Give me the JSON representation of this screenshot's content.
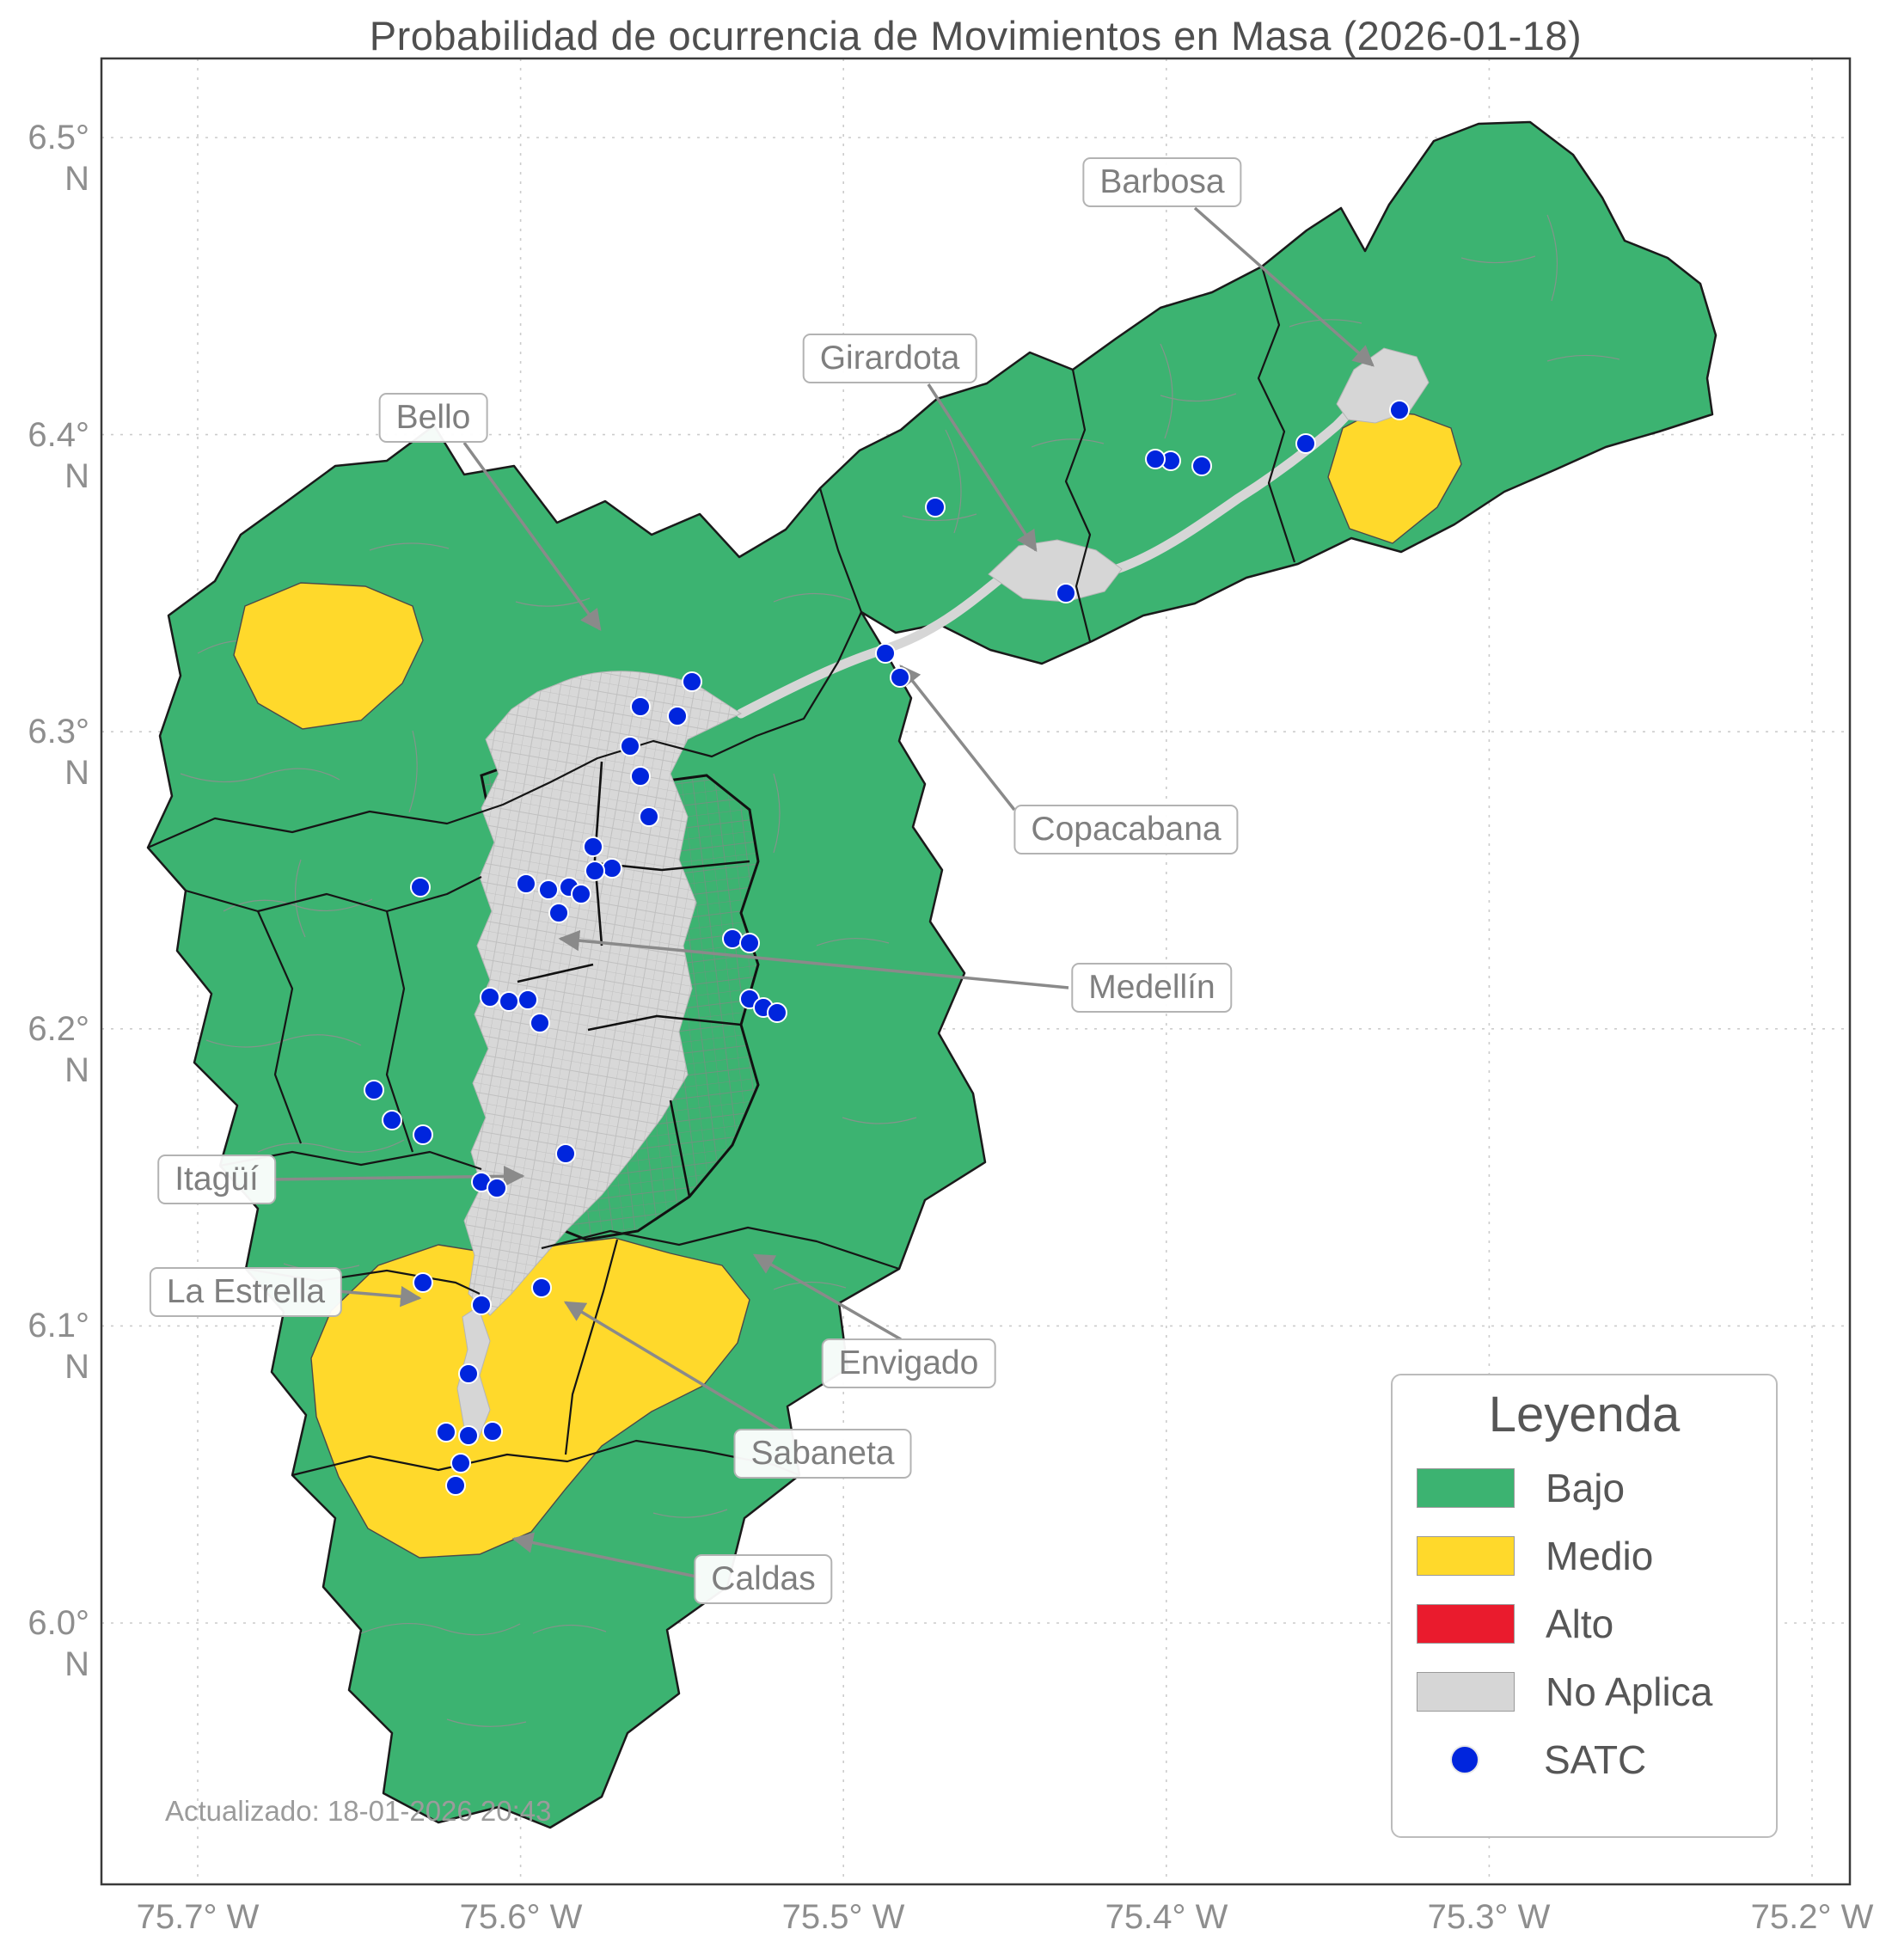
{
  "title": "Probabilidad de ocurrencia de Movimientos en Masa (2026-01-18)",
  "footer": {
    "updated": "Actualizado: 18-01-2026 20:43"
  },
  "axes": {
    "x_ticks": [
      "75.7° W",
      "75.6° W",
      "75.5° W",
      "75.4° W",
      "75.3° W",
      "75.2° W"
    ],
    "y_ticks": [
      "6.5° N",
      "6.4° N",
      "6.3° N",
      "6.2° N",
      "6.1° N",
      "6.0° N"
    ]
  },
  "legend": {
    "title": "Leyenda",
    "items": [
      {
        "label": "Bajo",
        "color": "#3cb371",
        "shape": "swatch"
      },
      {
        "label": "Medio",
        "color": "#ffd92b",
        "shape": "swatch"
      },
      {
        "label": "Alto",
        "color": "#ea1b2d",
        "shape": "swatch"
      },
      {
        "label": "No Aplica",
        "color": "#d6d6d6",
        "shape": "swatch"
      },
      {
        "label": "SATC",
        "color": "#0025dd",
        "shape": "dot"
      }
    ]
  },
  "annotations": [
    {
      "label": "Barbosa"
    },
    {
      "label": "Girardota"
    },
    {
      "label": "Bello"
    },
    {
      "label": "Copacabana"
    },
    {
      "label": "Medellín"
    },
    {
      "label": "Itagüí"
    },
    {
      "label": "La Estrella"
    },
    {
      "label": "Envigado"
    },
    {
      "label": "Sabaneta"
    },
    {
      "label": "Caldas"
    }
  ],
  "map": {
    "risk_levels": {
      "bajo": "#3cb371",
      "medio": "#ffd92b",
      "alto": "#ea1b2d",
      "no_aplica": "#d6d6d6"
    },
    "satc_color": "#0025dd",
    "satc_points": [
      [
        1628,
        477
      ],
      [
        1519,
        516
      ],
      [
        1398,
        542
      ],
      [
        1362,
        536
      ],
      [
        1344,
        534
      ],
      [
        1240,
        690
      ],
      [
        1088,
        590
      ],
      [
        1030,
        760
      ],
      [
        1047,
        788
      ],
      [
        805,
        793
      ],
      [
        745,
        822
      ],
      [
        788,
        833
      ],
      [
        733,
        868
      ],
      [
        745,
        903
      ],
      [
        755,
        950
      ],
      [
        690,
        985
      ],
      [
        712,
        1010
      ],
      [
        692,
        1013
      ],
      [
        489,
        1032
      ],
      [
        612,
        1028
      ],
      [
        638,
        1035
      ],
      [
        662,
        1032
      ],
      [
        676,
        1040
      ],
      [
        650,
        1062
      ],
      [
        852,
        1092
      ],
      [
        872,
        1097
      ],
      [
        872,
        1162
      ],
      [
        888,
        1172
      ],
      [
        904,
        1178
      ],
      [
        570,
        1160
      ],
      [
        592,
        1165
      ],
      [
        614,
        1163
      ],
      [
        628,
        1190
      ],
      [
        435,
        1268
      ],
      [
        456,
        1303
      ],
      [
        492,
        1320
      ],
      [
        658,
        1342
      ],
      [
        560,
        1375
      ],
      [
        578,
        1382
      ],
      [
        492,
        1492
      ],
      [
        560,
        1518
      ],
      [
        630,
        1498
      ],
      [
        545,
        1598
      ],
      [
        519,
        1666
      ],
      [
        545,
        1670
      ],
      [
        573,
        1665
      ],
      [
        536,
        1702
      ],
      [
        530,
        1728
      ]
    ]
  }
}
